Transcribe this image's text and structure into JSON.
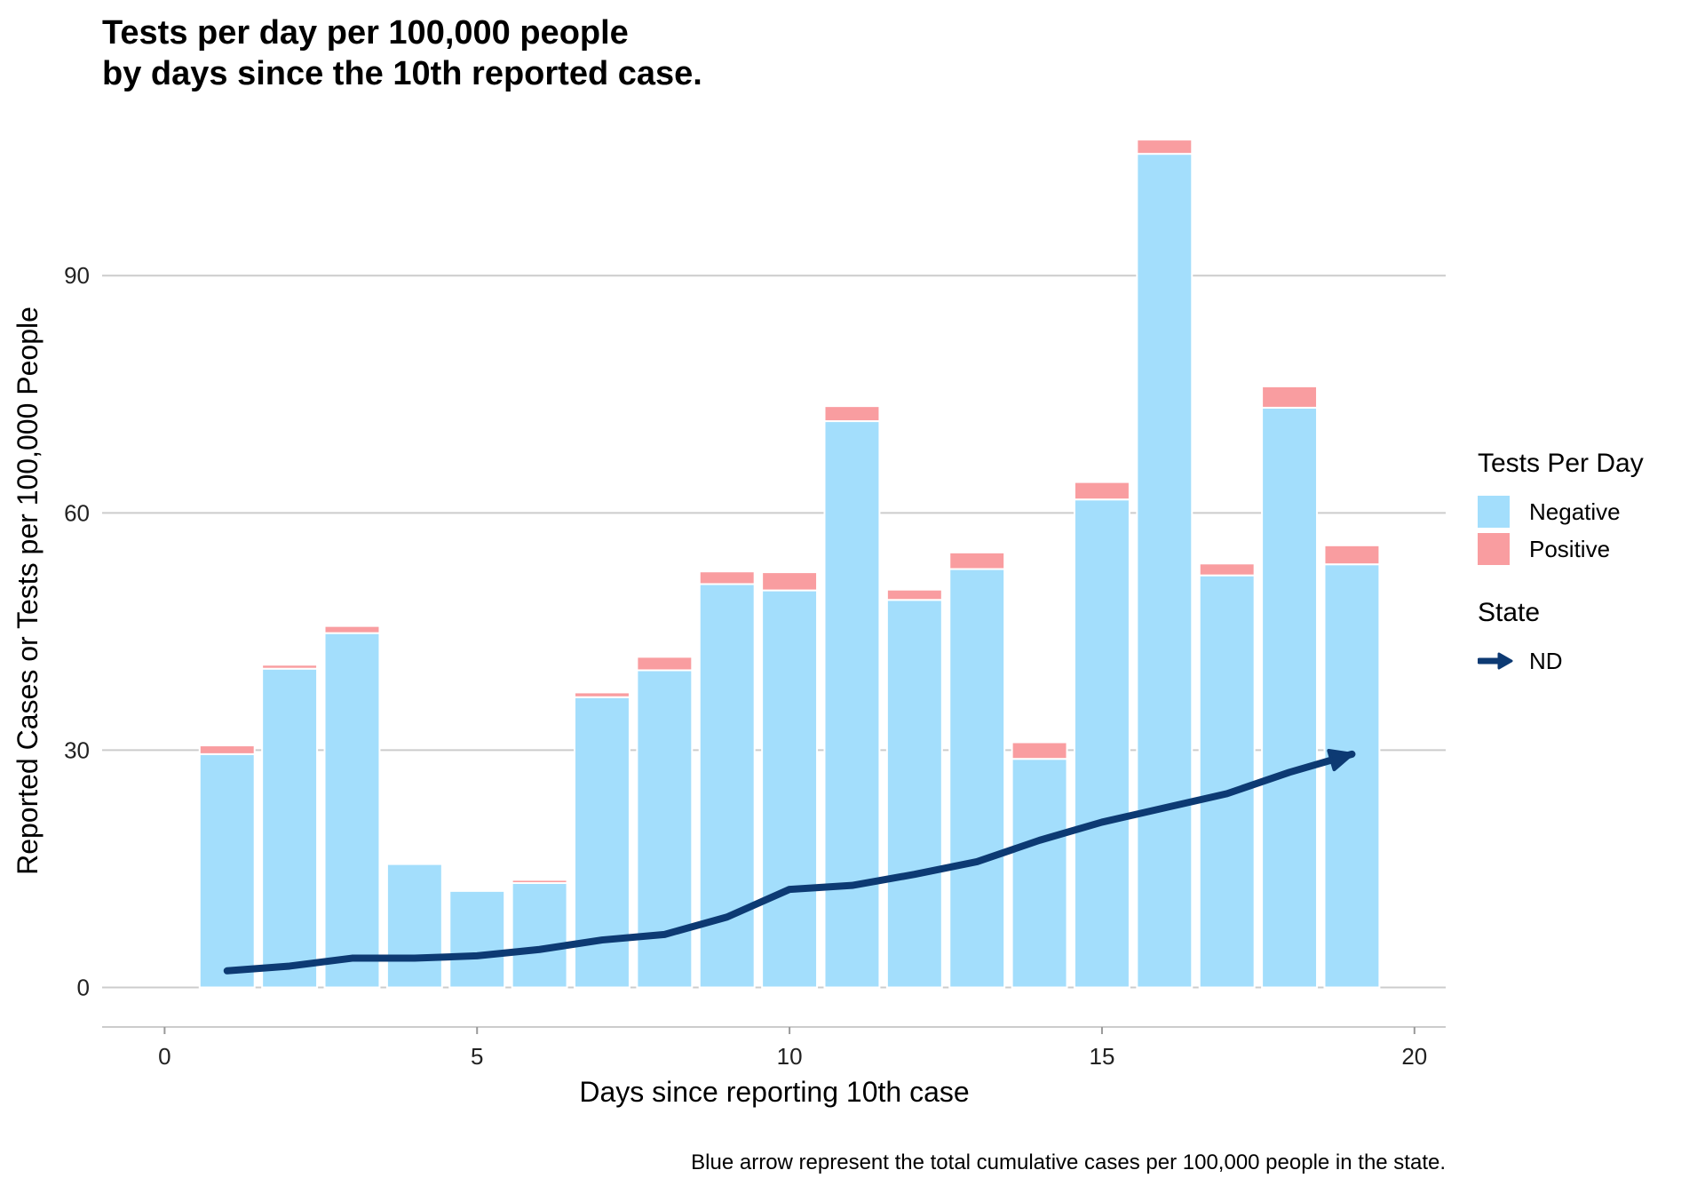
{
  "chart_data": {
    "type": "bar",
    "title": "Tests per day per 100,000 people",
    "subtitle": "by days since the 10th reported case.",
    "xlabel": "Days since reporting 10th case",
    "ylabel": "Reported Cases or Tests per 100,000 People",
    "caption": "Blue arrow represent the total cumulative cases per 100,000 people in the state.",
    "xlim": [
      -1,
      20.5
    ],
    "ylim": [
      -5,
      108
    ],
    "x_ticks": [
      0,
      5,
      10,
      15,
      20
    ],
    "y_ticks": [
      0,
      30,
      60,
      90
    ],
    "grid": "horizontal",
    "stacked": true,
    "legend_placement": "right",
    "categories": [
      1,
      2,
      3,
      4,
      5,
      6,
      7,
      8,
      9,
      10,
      11,
      12,
      13,
      14,
      15,
      16,
      17,
      18,
      19
    ],
    "series": [
      {
        "name": "Negative",
        "color": "#a3defc",
        "values": [
          29.5,
          40.3,
          44.8,
          15.6,
          12.2,
          13.2,
          36.7,
          40.1,
          51.0,
          50.2,
          71.6,
          49.0,
          52.9,
          28.9,
          61.7,
          105.4,
          52.1,
          73.3,
          53.5
        ]
      },
      {
        "name": "Positive",
        "color": "#f99da0",
        "values": [
          1.1,
          0.5,
          0.9,
          0.0,
          0.0,
          0.4,
          0.6,
          1.7,
          1.6,
          2.3,
          1.9,
          1.3,
          2.1,
          2.1,
          2.2,
          1.8,
          1.5,
          2.7,
          2.4
        ]
      }
    ],
    "cumulative_line": {
      "name": "ND",
      "color": "#0d3a73",
      "x": [
        1,
        2,
        3,
        4,
        5,
        6,
        7,
        8,
        9,
        10,
        11,
        12,
        13,
        14,
        15,
        16,
        17,
        18,
        19
      ],
      "values": [
        2.1,
        2.7,
        3.7,
        3.7,
        4.0,
        4.8,
        6.0,
        6.7,
        8.9,
        12.4,
        12.9,
        14.3,
        15.9,
        18.6,
        20.9,
        22.7,
        24.5,
        27.2,
        29.5
      ],
      "arrow": true
    }
  },
  "legend": {
    "fill_title": "Tests Per Day",
    "fill_items": [
      {
        "label": "Negative",
        "color": "#a3defc"
      },
      {
        "label": "Positive",
        "color": "#f99da0"
      }
    ],
    "color_title": "State",
    "color_items": [
      {
        "label": "ND",
        "color": "#0d3a73"
      }
    ]
  }
}
